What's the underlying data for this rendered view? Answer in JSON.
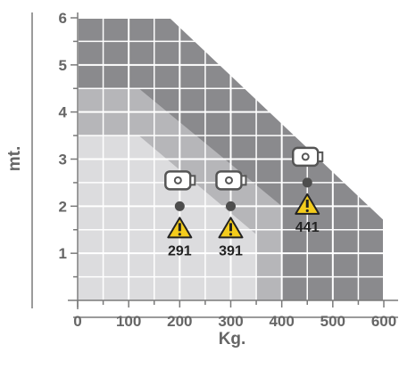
{
  "colors": {
    "background": "#ffffff",
    "zone_outer": "#8a8a8d",
    "zone_middle": "#b6b6b9",
    "zone_inner": "#dcdcde",
    "grid": "#ffffff",
    "axis": "#7a7a7a",
    "text": "#666666",
    "dot": "#4d4d4d",
    "warning_fill": "#f4cc1c",
    "warning_stroke": "#222222",
    "camera_stroke": "#555555"
  },
  "chart_data": {
    "type": "area",
    "xlabel": "Kg.",
    "ylabel": "mt.",
    "xlim": [
      0,
      600
    ],
    "ylim": [
      0,
      6
    ],
    "x_ticks": [
      "0",
      "100",
      "200",
      "300",
      "400",
      "500",
      "600"
    ],
    "y_ticks": [
      "1",
      "2",
      "3",
      "4",
      "5",
      "6"
    ],
    "grid": true,
    "zones": [
      {
        "level": "outer",
        "points": [
          [
            0,
            0
          ],
          [
            0,
            6
          ],
          [
            180,
            6
          ],
          [
            600,
            1.7
          ],
          [
            600,
            0
          ]
        ]
      },
      {
        "level": "middle",
        "points": [
          [
            0,
            0
          ],
          [
            0,
            4.5
          ],
          [
            120,
            4.5
          ],
          [
            400,
            2.0
          ],
          [
            400,
            0
          ]
        ]
      },
      {
        "level": "inner",
        "points": [
          [
            0,
            0
          ],
          [
            0,
            3.5
          ],
          [
            120,
            3.5
          ],
          [
            350,
            1.4
          ],
          [
            350,
            0
          ]
        ]
      }
    ],
    "markers": [
      {
        "label": "291",
        "x": 200,
        "y": 2.0,
        "icon": "camera-icon"
      },
      {
        "label": "391",
        "x": 300,
        "y": 2.0,
        "icon": "camera-icon"
      },
      {
        "label": "441",
        "x": 450,
        "y": 2.5,
        "icon": "camera-icon"
      }
    ]
  }
}
